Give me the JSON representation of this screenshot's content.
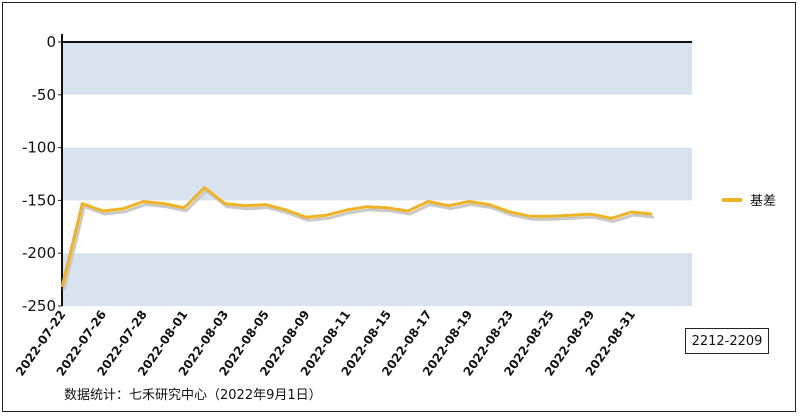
{
  "chart_data": {
    "type": "line",
    "title": "",
    "xlabel": "",
    "ylabel": "",
    "ylim": [
      -250,
      0
    ],
    "yticks": [
      0,
      -50,
      -100,
      -150,
      -200,
      -250
    ],
    "grid": "alternating horizontal bands",
    "legend_position": "right",
    "x": [
      "2022-07-22",
      "2022-07-25",
      "2022-07-26",
      "2022-07-27",
      "2022-07-28",
      "2022-07-29",
      "2022-08-01",
      "2022-08-02",
      "2022-08-03",
      "2022-08-04",
      "2022-08-05",
      "2022-08-08",
      "2022-08-09",
      "2022-08-10",
      "2022-08-11",
      "2022-08-12",
      "2022-08-15",
      "2022-08-16",
      "2022-08-17",
      "2022-08-18",
      "2022-08-19",
      "2022-08-22",
      "2022-08-23",
      "2022-08-24",
      "2022-08-25",
      "2022-08-26",
      "2022-08-29",
      "2022-08-30",
      "2022-08-31",
      "2022-09-01"
    ],
    "x_tick_labels": [
      "2022-07-22",
      "2022-07-26",
      "2022-07-28",
      "2022-08-01",
      "2022-08-03",
      "2022-08-05",
      "2022-08-09",
      "2022-08-11",
      "2022-08-15",
      "2022-08-17",
      "2022-08-19",
      "2022-08-23",
      "2022-08-25",
      "2022-08-29",
      "2022-08-31"
    ],
    "series": [
      {
        "name": "基差",
        "color": "#f0b323",
        "values": [
          -232,
          -153,
          -160,
          -158,
          -151,
          -153,
          -157,
          -138,
          -153,
          -155,
          -154,
          -159,
          -166,
          -164,
          -159,
          -156,
          -157,
          -160,
          -151,
          -155,
          -151,
          -154,
          -161,
          -165,
          -165,
          -164,
          -163,
          -167,
          -161,
          -163
        ]
      }
    ],
    "contract_label": "2212-2209",
    "source_note": "数据统计：七禾研究中心（2022年9月1日）"
  }
}
